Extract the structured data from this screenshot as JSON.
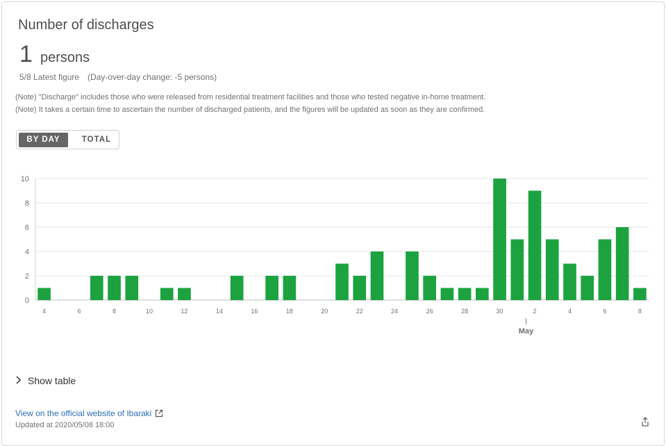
{
  "card": {
    "title": "Number of discharges",
    "value": "1",
    "unit": "persons",
    "latest": "5/8 Latest figure　(Day-over-day change: -5 persons)",
    "notes": [
      "(Note) \"Discharge\" includes those who were released from residential treatment facilities and those who tested negative in-home treatment.",
      "(Note) It takes a certain time to ascertain the number of discharged patients, and the figures will be updated as soon as they are confirmed."
    ]
  },
  "toggle": {
    "by_day": "BY DAY",
    "total": "TOTAL",
    "selected": "BY DAY"
  },
  "footer": {
    "show_table": "Show table",
    "link_text": "View on the official website of Ibaraki",
    "updated": "Updated at 2020/05/08 18:00"
  },
  "colors": {
    "bar": "#1ca340",
    "grid": "#e6e6e6",
    "axis_text": "#707070",
    "link": "#2a6db5"
  },
  "chart_data": {
    "type": "bar",
    "x": [
      "4/4",
      "4/5",
      "4/6",
      "4/7",
      "4/8",
      "4/9",
      "4/10",
      "4/11",
      "4/12",
      "4/13",
      "4/14",
      "4/15",
      "4/16",
      "4/17",
      "4/18",
      "4/19",
      "4/20",
      "4/21",
      "4/22",
      "4/23",
      "4/24",
      "4/25",
      "4/26",
      "4/27",
      "4/28",
      "4/29",
      "4/30",
      "5/1",
      "5/2",
      "5/3",
      "5/4",
      "5/5",
      "5/6",
      "5/7",
      "5/8"
    ],
    "values": [
      1,
      0,
      0,
      2,
      2,
      2,
      0,
      1,
      1,
      0,
      0,
      2,
      0,
      2,
      2,
      0,
      0,
      3,
      2,
      4,
      0,
      4,
      2,
      1,
      1,
      1,
      10,
      5,
      9,
      5,
      3,
      2,
      5,
      6,
      1
    ],
    "tick_labels": [
      {
        "index": 0,
        "label": "4"
      },
      {
        "index": 2,
        "label": "6"
      },
      {
        "index": 4,
        "label": "8"
      },
      {
        "index": 6,
        "label": "10"
      },
      {
        "index": 8,
        "label": "12"
      },
      {
        "index": 10,
        "label": "14"
      },
      {
        "index": 12,
        "label": "16"
      },
      {
        "index": 14,
        "label": "18"
      },
      {
        "index": 16,
        "label": "20"
      },
      {
        "index": 18,
        "label": "22"
      },
      {
        "index": 20,
        "label": "24"
      },
      {
        "index": 22,
        "label": "26"
      },
      {
        "index": 24,
        "label": "28"
      },
      {
        "index": 26,
        "label": "30"
      },
      {
        "index": 28,
        "label": "2"
      },
      {
        "index": 30,
        "label": "4"
      },
      {
        "index": 32,
        "label": "6"
      },
      {
        "index": 34,
        "label": "8"
      }
    ],
    "month_label": "May",
    "yticks": [
      0,
      2,
      4,
      6,
      8,
      10
    ],
    "ylim": [
      0,
      10
    ],
    "grid": true
  }
}
